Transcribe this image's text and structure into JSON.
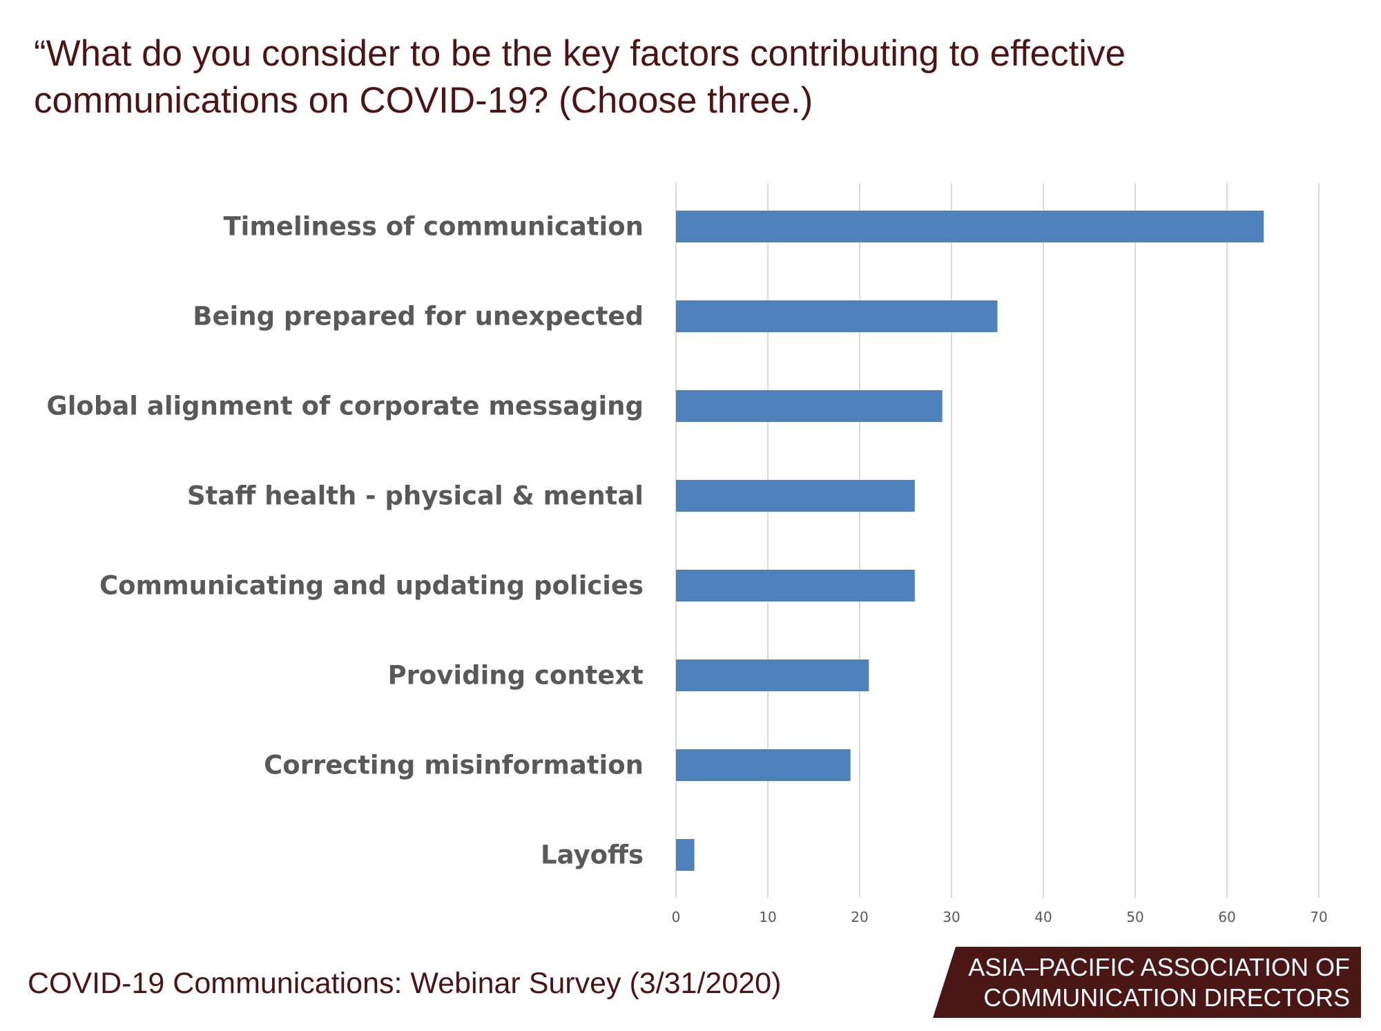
{
  "chart_data": {
    "type": "bar",
    "orientation": "horizontal",
    "title": "“What do you consider to be the key factors contributing to effective communications on COVID-19? (Choose three.)",
    "categories": [
      "Timeliness of communication",
      "Being prepared for unexpected",
      "Global alignment of corporate messaging",
      "Staff health - physical & mental",
      "Communicating and updating policies",
      "Providing context",
      "Correcting misinformation",
      "Layoffs"
    ],
    "values": [
      64,
      35,
      29,
      26,
      26,
      21,
      19,
      2
    ],
    "xlim": [
      0,
      70
    ],
    "x_ticks": [
      0,
      10,
      20,
      30,
      40,
      50,
      60,
      70
    ],
    "grid": true,
    "legend": "none",
    "bar_color": "#4f81bd",
    "xlabel": "",
    "ylabel": ""
  },
  "footer": {
    "source": "COVID-19 Communications: Webinar Survey (3/31/2020)"
  },
  "brand": {
    "line1": "ASIA–PACIFIC ASSOCIATION OF",
    "line2": "COMMUNICATION DIRECTORS"
  },
  "colors": {
    "title_text": "#4d1414",
    "label_text": "#595959",
    "gridline": "#d9d9d9",
    "brand_background": "#4a1616"
  }
}
